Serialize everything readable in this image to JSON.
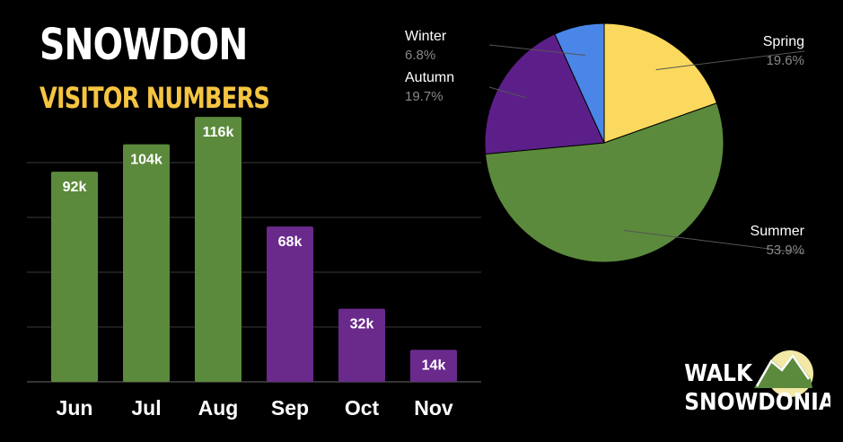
{
  "header": {
    "title": "SNOWDON",
    "subtitle": "VISITOR NUMBERS"
  },
  "chart_data": [
    {
      "type": "bar",
      "categories": [
        "Jun",
        "Jul",
        "Aug",
        "Sep",
        "Oct",
        "Nov"
      ],
      "values": [
        92,
        104,
        116,
        68,
        32,
        14
      ],
      "data_labels": [
        "92k",
        "104k",
        "116k",
        "68k",
        "32k",
        "14k"
      ],
      "bar_colors": [
        "#5b8a3c",
        "#5b8a3c",
        "#5b8a3c",
        "#6a2a8c",
        "#6a2a8c",
        "#6a2a8c"
      ],
      "ylim": [
        0,
        120
      ],
      "grid": true,
      "title": "",
      "xlabel": "",
      "ylabel": ""
    },
    {
      "type": "pie",
      "slices": [
        {
          "label": "Spring",
          "value": 19.6,
          "pct_label": "19.6%",
          "color": "#fbd95e"
        },
        {
          "label": "Summer",
          "value": 53.9,
          "pct_label": "53.9%",
          "color": "#5b8a3c"
        },
        {
          "label": "Autumn",
          "value": 19.7,
          "pct_label": "19.7%",
          "color": "#5c1f8a"
        },
        {
          "label": "Winter",
          "value": 6.8,
          "pct_label": "6.8%",
          "color": "#4a86e8"
        }
      ],
      "start": "12 o'clock",
      "direction": "clockwise"
    }
  ],
  "logo": {
    "line1": "WALK",
    "line2": "SNOWDONIA"
  },
  "colors": {
    "background": "#000000",
    "title": "#ffffff",
    "subtitle": "#f5c542",
    "grid": "#3a3a3a",
    "label_value": "#888888"
  }
}
